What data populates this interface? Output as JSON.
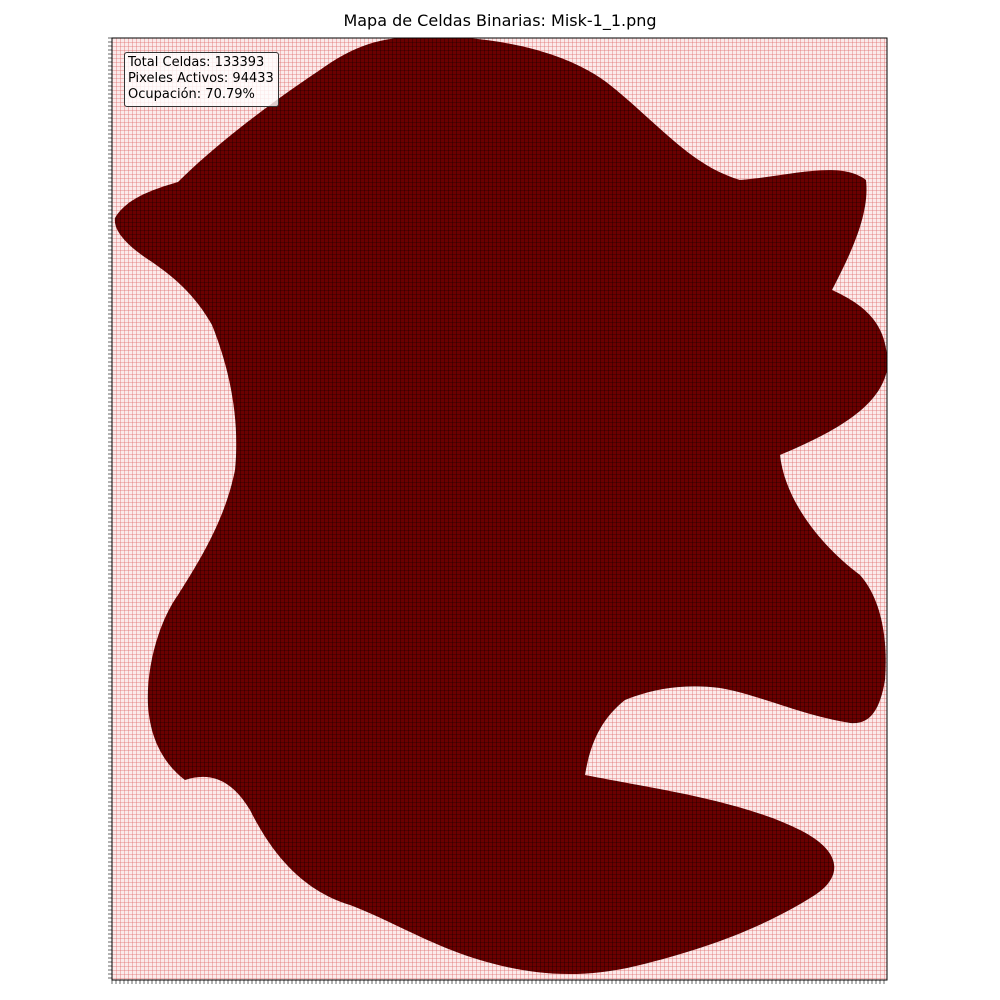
{
  "chart_data": {
    "type": "heatmap",
    "title": "Mapa de Celdas Binarias: Misk-1_1.png",
    "xlabel": "",
    "ylabel": "",
    "colors": {
      "active_fill": "#6b0000",
      "inactive_fill": "#fbeaea",
      "active_grid": "#000000",
      "inactive_grid": "#e06a6a",
      "frame": "#000000"
    },
    "stats": {
      "total_label": "Total Celdas: 133393",
      "active_label": "Pixeles Activos: 94433",
      "occupancy_label": "Ocupación: 70.79%"
    },
    "total_cells": 133393,
    "active_pixels": 94433,
    "occupancy_percent": 70.79,
    "legend": "none",
    "grid": true,
    "ticks_visible_labels": false
  }
}
